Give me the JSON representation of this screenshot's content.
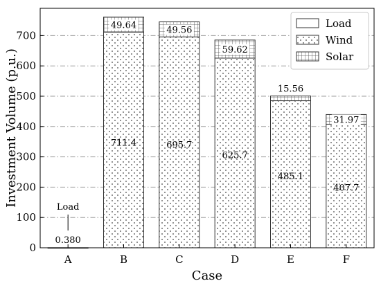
{
  "chart_data": {
    "type": "bar",
    "stacked": true,
    "xlabel": "Case",
    "ylabel": "Investment Volume (p.u.)",
    "categories": [
      "A",
      "B",
      "C",
      "D",
      "E",
      "F"
    ],
    "ylim": [
      0,
      790
    ],
    "yticks": [
      0,
      100,
      200,
      300,
      400,
      500,
      600,
      700
    ],
    "grid": "horizontal dash-dot",
    "legend_position": "top-right",
    "series": [
      {
        "name": "Load",
        "pattern": "empty",
        "values": [
          0.38,
          0,
          0,
          0,
          0,
          0
        ]
      },
      {
        "name": "Wind",
        "pattern": "dots",
        "values": [
          0,
          711.4,
          695.7,
          625.7,
          485.1,
          407.7
        ]
      },
      {
        "name": "Solar",
        "pattern": "grid",
        "values": [
          0,
          49.64,
          49.56,
          59.62,
          15.56,
          31.97
        ]
      }
    ],
    "wind_labels": [
      "",
      "711.4",
      "695.7",
      "625.7",
      "485.1",
      "407.7"
    ],
    "solar_labels": [
      "",
      "49.64",
      "49.56",
      "59.62",
      "15.56",
      "31.97"
    ],
    "annotations": [
      {
        "category": "A",
        "text": "Load"
      },
      {
        "category": "A",
        "text": "0.380"
      }
    ],
    "colors": {
      "edge": "#333333",
      "pattern": "#444444",
      "grid": "#9e9e9e"
    }
  }
}
